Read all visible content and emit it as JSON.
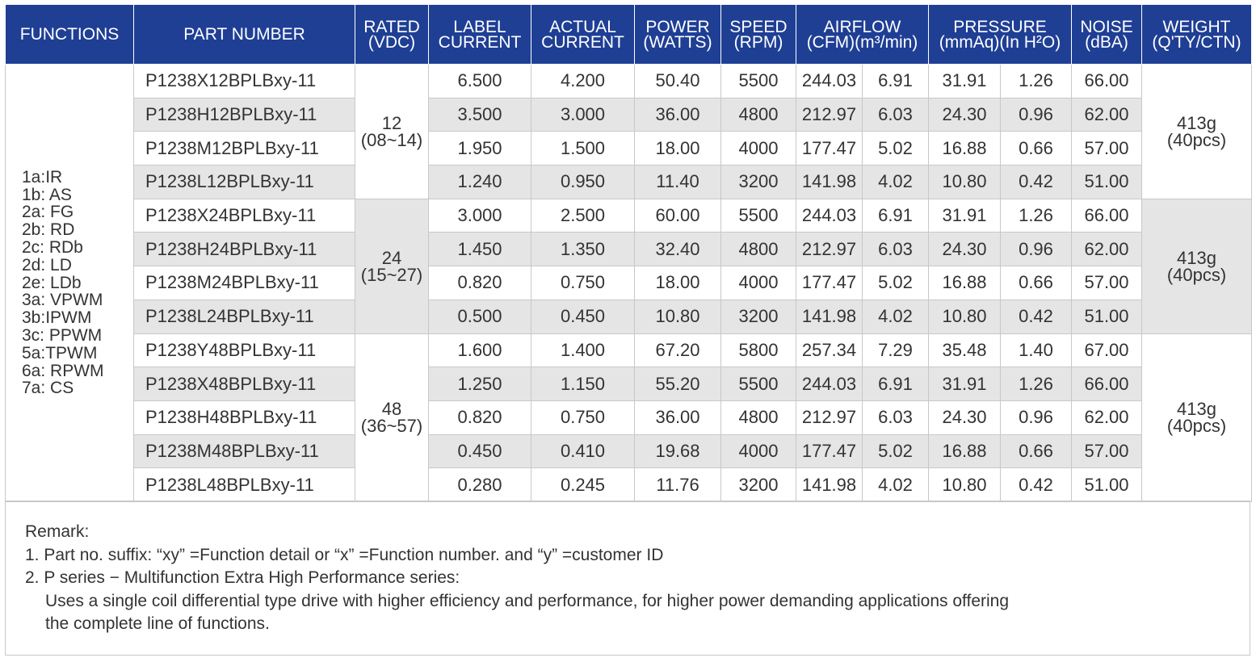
{
  "table": {
    "headers": [
      [
        "FUNCTIONS"
      ],
      [
        "PART NUMBER"
      ],
      [
        "RATED",
        "(VDC)"
      ],
      [
        "LABEL",
        "CURRENT"
      ],
      [
        "ACTUAL",
        "CURRENT"
      ],
      [
        "POWER",
        "(WATTS)"
      ],
      [
        "SPEED",
        "(RPM)"
      ],
      [
        "AIRFLOW",
        "(CFM)(m³/min)"
      ],
      [
        "PRESSURE",
        "(mmAq)(In H²O)"
      ],
      [
        "NOISE",
        "(dBA)"
      ],
      [
        "WEIGHT",
        "(Q'TY/CTN)"
      ]
    ],
    "functions": [
      "1a:IR",
      "1b: AS",
      "2a: FG",
      "2b: RD",
      "2c: RDb",
      "2d: LD",
      "2e: LDb",
      "3a: VPWM",
      "3b:IPWM",
      "3c: PPWM",
      "5a:TPWM",
      "6a: RPWM",
      "7a: CS"
    ],
    "rated": [
      [
        "12",
        "(08~14)"
      ],
      [
        "24",
        "(15~27)"
      ],
      [
        "48",
        "(36~57)"
      ]
    ],
    "weight": [
      [
        "413g",
        "(40pcs)"
      ],
      [
        "413g",
        "(40pcs)"
      ],
      [
        "413g",
        "(40pcs)"
      ]
    ],
    "rows": [
      [
        "P1238X12BPLBxy-11",
        "6.500",
        "4.200",
        "50.40",
        "5500",
        "244.03",
        "6.91",
        "31.91",
        "1.26",
        "66.00"
      ],
      [
        "P1238H12BPLBxy-11",
        "3.500",
        "3.000",
        "36.00",
        "4800",
        "212.97",
        "6.03",
        "24.30",
        "0.96",
        "62.00"
      ],
      [
        "P1238M12BPLBxy-11",
        "1.950",
        "1.500",
        "18.00",
        "4000",
        "177.47",
        "5.02",
        "16.88",
        "0.66",
        "57.00"
      ],
      [
        "P1238L12BPLBxy-11",
        "1.240",
        "0.950",
        "11.40",
        "3200",
        "141.98",
        "4.02",
        "10.80",
        "0.42",
        "51.00"
      ],
      [
        "P1238X24BPLBxy-11",
        "3.000",
        "2.500",
        "60.00",
        "5500",
        "244.03",
        "6.91",
        "31.91",
        "1.26",
        "66.00"
      ],
      [
        "P1238H24BPLBxy-11",
        "1.450",
        "1.350",
        "32.40",
        "4800",
        "212.97",
        "6.03",
        "24.30",
        "0.96",
        "62.00"
      ],
      [
        "P1238M24BPLBxy-11",
        "0.820",
        "0.750",
        "18.00",
        "4000",
        "177.47",
        "5.02",
        "16.88",
        "0.66",
        "57.00"
      ],
      [
        "P1238L24BPLBxy-11",
        "0.500",
        "0.450",
        "10.80",
        "3200",
        "141.98",
        "4.02",
        "10.80",
        "0.42",
        "51.00"
      ],
      [
        "P1238Y48BPLBxy-11",
        "1.600",
        "1.400",
        "67.20",
        "5800",
        "257.34",
        "7.29",
        "35.48",
        "1.40",
        "67.00"
      ],
      [
        "P1238X48BPLBxy-11",
        "1.250",
        "1.150",
        "55.20",
        "5500",
        "244.03",
        "6.91",
        "31.91",
        "1.26",
        "66.00"
      ],
      [
        "P1238H48BPLBxy-11",
        "0.820",
        "0.750",
        "36.00",
        "4800",
        "212.97",
        "6.03",
        "24.30",
        "0.96",
        "62.00"
      ],
      [
        "P1238M48BPLBxy-11",
        "0.450",
        "0.410",
        "19.68",
        "4000",
        "177.47",
        "5.02",
        "16.88",
        "0.66",
        "57.00"
      ],
      [
        "P1238L48BPLBxy-11",
        "0.280",
        "0.245",
        "11.76",
        "3200",
        "141.98",
        "4.02",
        "10.80",
        "0.42",
        "51.00"
      ]
    ]
  },
  "remark": {
    "lines": [
      "Remark:",
      "1. Part no. suffix: “xy” =Function detail or “x” =Function number. and “y” =customer ID",
      "2. P series − Multifunction Extra High Performance series:",
      "Uses a single coil differential type drive with higher efficiency and performance, for higher power demanding applications offering",
      "the complete line of functions."
    ]
  }
}
